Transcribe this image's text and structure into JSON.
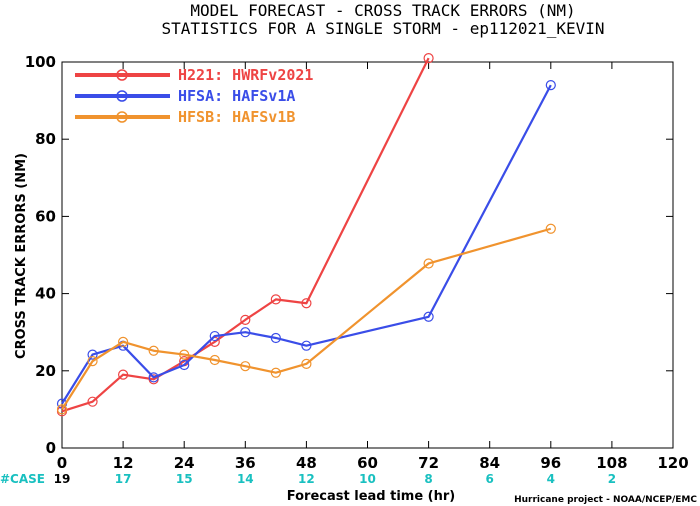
{
  "chart_data": {
    "type": "line",
    "title_line1": "MODEL FORECAST - CROSS TRACK ERRORS (NM)",
    "title_line2": "STATISTICS FOR A SINGLE STORM - ep112021_KEVIN",
    "xlabel": "Forecast lead time (hr)",
    "ylabel": "CROSS TRACK ERRORS (NM)",
    "xlim": [
      0,
      120
    ],
    "ylim": [
      0,
      100
    ],
    "xticks": [
      0,
      12,
      24,
      36,
      48,
      60,
      72,
      84,
      96,
      108,
      120
    ],
    "yticks": [
      0,
      20,
      40,
      60,
      80,
      100
    ],
    "grid": false,
    "legend_position": "top-left",
    "series": [
      {
        "name": "H221: HWRFv2021",
        "color": "#ee4444",
        "x": [
          0,
          6,
          12,
          18,
          24,
          30,
          36,
          42,
          48,
          72
        ],
        "y": [
          9.5,
          12,
          19,
          17.8,
          22.5,
          27.5,
          33.2,
          38.5,
          37.5,
          101
        ]
      },
      {
        "name": "HFSA: HAFSv1A",
        "color": "#3a4de8",
        "x": [
          0,
          6,
          12,
          18,
          24,
          30,
          36,
          42,
          48,
          72,
          96
        ],
        "y": [
          11.5,
          24.2,
          26.5,
          18.3,
          21.5,
          29,
          30,
          28.5,
          26.5,
          34,
          94
        ]
      },
      {
        "name": "HFSB: HAFSv1B",
        "color": "#f0932e",
        "x": [
          0,
          6,
          12,
          18,
          24,
          30,
          36,
          42,
          48,
          72,
          96
        ],
        "y": [
          10,
          22.5,
          27.5,
          25.2,
          24.2,
          22.8,
          21.2,
          19.5,
          21.8,
          47.8,
          56.8
        ]
      }
    ],
    "case_label": "#CASE",
    "case_label_color": "#19c0c0",
    "cases": [
      {
        "x": 0,
        "n": "19"
      },
      {
        "x": 12,
        "n": "17"
      },
      {
        "x": 24,
        "n": "15"
      },
      {
        "x": 36,
        "n": "14"
      },
      {
        "x": 48,
        "n": "12"
      },
      {
        "x": 60,
        "n": "10"
      },
      {
        "x": 72,
        "n": "8"
      },
      {
        "x": 84,
        "n": "6"
      },
      {
        "x": 96,
        "n": "4"
      },
      {
        "x": 108,
        "n": "2"
      }
    ],
    "case_color": "#19c0c0",
    "first_case_color": "#000000",
    "credit": "Hurricane project - NOAA/NCEP/EMC"
  }
}
